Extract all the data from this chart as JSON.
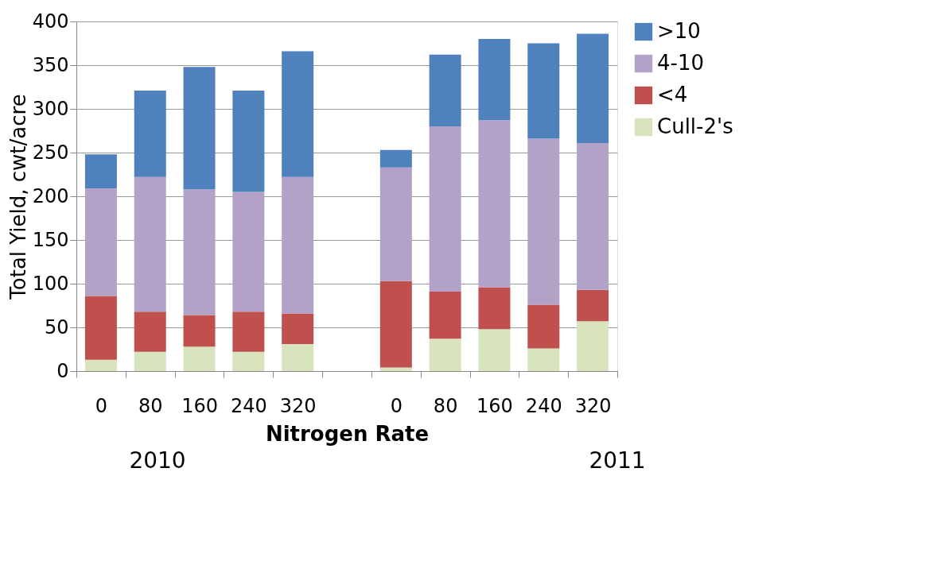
{
  "chart_data": {
    "type": "bar",
    "stacked": true,
    "xlabel": "Nitrogen Rate",
    "ylabel": "Total Yield, cwt/acre",
    "categories": [
      "0",
      "80",
      "160",
      "240",
      "320",
      null,
      "0",
      "80",
      "160",
      "240",
      "320"
    ],
    "series": [
      {
        "name": "Cull-2's",
        "color": "#d7e4bd",
        "values": [
          13,
          22,
          28,
          22,
          31,
          null,
          4,
          37,
          48,
          26,
          57
        ]
      },
      {
        "name": "<4",
        "color": "#c0504d",
        "values": [
          73,
          46,
          36,
          46,
          35,
          null,
          99,
          54,
          48,
          50,
          36
        ]
      },
      {
        "name": "4-10",
        "color": "#b2a2c7",
        "values": [
          123,
          154,
          144,
          137,
          156,
          null,
          130,
          189,
          191,
          190,
          168
        ]
      },
      {
        "name": ">10",
        "color": "#4f81bd",
        "values": [
          39,
          99,
          140,
          116,
          144,
          null,
          20,
          82,
          93,
          109,
          125
        ]
      }
    ],
    "ylim": [
      0,
      400
    ],
    "yticks": [
      0,
      50,
      100,
      150,
      200,
      250,
      300,
      350,
      400
    ],
    "grid": "y",
    "legend": "right",
    "annotations": [
      "2010",
      "2011"
    ]
  }
}
